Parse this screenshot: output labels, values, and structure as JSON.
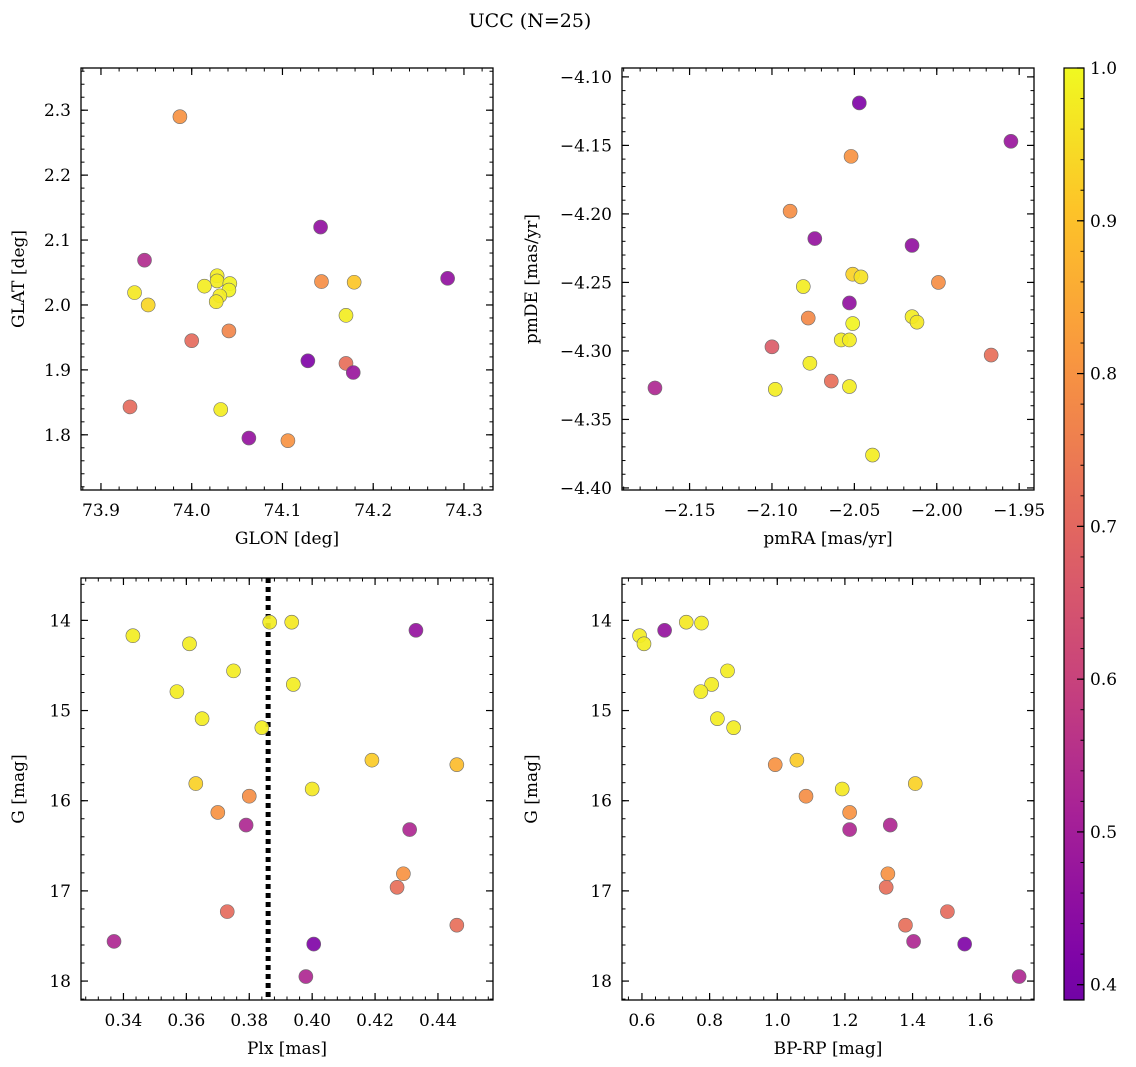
{
  "title": "UCC (N=25)",
  "colorbar": {
    "range": [
      0.39,
      1.0
    ],
    "ticks": [
      0.4,
      0.5,
      0.6,
      0.7,
      0.8,
      0.9,
      1.0
    ],
    "tick_labels": [
      "0.4",
      "0.5",
      "0.6",
      "0.7",
      "0.8",
      "0.9",
      "1.0"
    ],
    "colormap": "plasma"
  },
  "chart_data": [
    {
      "type": "scatter",
      "xlabel": "GLON [deg]",
      "ylabel": "GLAT [deg]",
      "xlim": [
        73.878,
        74.332
      ],
      "ylim": [
        1.715,
        2.365
      ],
      "xticks": [
        73.9,
        74.0,
        74.1,
        74.2,
        74.3
      ],
      "xtick_labels": [
        "73.9",
        "74.0",
        "74.1",
        "74.2",
        "74.3"
      ],
      "yticks": [
        1.8,
        1.9,
        2.0,
        2.1,
        2.2,
        2.3
      ],
      "ytick_labels": [
        "1.8",
        "1.9",
        "2.0",
        "2.1",
        "2.2",
        "2.3"
      ],
      "points": [
        {
          "x": 73.987,
          "y": 2.29,
          "c": 0.8
        },
        {
          "x": 74.142,
          "y": 2.12,
          "c": 0.46
        },
        {
          "x": 73.948,
          "y": 2.069,
          "c": 0.54
        },
        {
          "x": 74.282,
          "y": 2.041,
          "c": 0.46
        },
        {
          "x": 74.028,
          "y": 2.045,
          "c": 0.98
        },
        {
          "x": 74.143,
          "y": 2.036,
          "c": 0.79
        },
        {
          "x": 74.179,
          "y": 2.035,
          "c": 0.91
        },
        {
          "x": 74.028,
          "y": 2.037,
          "c": 0.98
        },
        {
          "x": 74.042,
          "y": 2.033,
          "c": 0.99
        },
        {
          "x": 74.014,
          "y": 2.029,
          "c": 0.98
        },
        {
          "x": 74.041,
          "y": 2.023,
          "c": 0.99
        },
        {
          "x": 73.937,
          "y": 2.019,
          "c": 0.97
        },
        {
          "x": 74.031,
          "y": 2.014,
          "c": 0.98
        },
        {
          "x": 74.027,
          "y": 2.005,
          "c": 0.97
        },
        {
          "x": 73.952,
          "y": 2.0,
          "c": 0.94
        },
        {
          "x": 74.17,
          "y": 1.984,
          "c": 0.98
        },
        {
          "x": 74.041,
          "y": 1.96,
          "c": 0.77
        },
        {
          "x": 74.0,
          "y": 1.945,
          "c": 0.71
        },
        {
          "x": 74.128,
          "y": 1.914,
          "c": 0.42
        },
        {
          "x": 74.17,
          "y": 1.91,
          "c": 0.72
        },
        {
          "x": 74.178,
          "y": 1.896,
          "c": 0.48
        },
        {
          "x": 73.932,
          "y": 1.843,
          "c": 0.71
        },
        {
          "x": 74.032,
          "y": 1.839,
          "c": 0.98
        },
        {
          "x": 74.063,
          "y": 1.795,
          "c": 0.47
        },
        {
          "x": 74.106,
          "y": 1.791,
          "c": 0.8
        }
      ]
    },
    {
      "type": "scatter",
      "xlabel": "pmRA [mas/yr]",
      "ylabel": "pmDE [mas/yr]",
      "xlim": [
        -2.191,
        -1.941
      ],
      "ylim": [
        -4.4015,
        -4.0935
      ],
      "xticks": [
        -2.15,
        -2.1,
        -2.05,
        -2.0,
        -1.95
      ],
      "xtick_labels": [
        "−2.15",
        "−2.10",
        "−2.05",
        "−2.00",
        "−1.95"
      ],
      "yticks": [
        -4.4,
        -4.35,
        -4.3,
        -4.25,
        -4.2,
        -4.15,
        -4.1
      ],
      "ytick_labels": [
        "−4.40",
        "−4.35",
        "−4.30",
        "−4.25",
        "−4.20",
        "−4.15",
        "−4.10"
      ],
      "points": [
        {
          "x": -2.047,
          "y": -4.119,
          "c": 0.42
        },
        {
          "x": -1.955,
          "y": -4.147,
          "c": 0.48
        },
        {
          "x": -2.052,
          "y": -4.158,
          "c": 0.8
        },
        {
          "x": -2.089,
          "y": -4.198,
          "c": 0.79
        },
        {
          "x": -2.074,
          "y": -4.218,
          "c": 0.47
        },
        {
          "x": -2.015,
          "y": -4.223,
          "c": 0.46
        },
        {
          "x": -2.051,
          "y": -4.244,
          "c": 0.93
        },
        {
          "x": -2.046,
          "y": -4.246,
          "c": 0.96
        },
        {
          "x": -1.999,
          "y": -4.25,
          "c": 0.79
        },
        {
          "x": -2.081,
          "y": -4.253,
          "c": 0.98
        },
        {
          "x": -2.053,
          "y": -4.265,
          "c": 0.46
        },
        {
          "x": -2.078,
          "y": -4.276,
          "c": 0.78
        },
        {
          "x": -2.015,
          "y": -4.275,
          "c": 0.98
        },
        {
          "x": -2.012,
          "y": -4.279,
          "c": 0.97
        },
        {
          "x": -2.051,
          "y": -4.28,
          "c": 0.99
        },
        {
          "x": -2.058,
          "y": -4.292,
          "c": 0.98
        },
        {
          "x": -2.053,
          "y": -4.292,
          "c": 0.98
        },
        {
          "x": -2.1,
          "y": -4.297,
          "c": 0.67
        },
        {
          "x": -1.967,
          "y": -4.303,
          "c": 0.72
        },
        {
          "x": -2.077,
          "y": -4.309,
          "c": 0.98
        },
        {
          "x": -2.064,
          "y": -4.322,
          "c": 0.72
        },
        {
          "x": -2.053,
          "y": -4.326,
          "c": 0.98
        },
        {
          "x": -2.171,
          "y": -4.327,
          "c": 0.53
        },
        {
          "x": -2.098,
          "y": -4.328,
          "c": 0.98
        },
        {
          "x": -2.039,
          "y": -4.376,
          "c": 0.98
        }
      ]
    },
    {
      "type": "scatter",
      "xlabel": "Plx [mas]",
      "ylabel": "G [mag]",
      "xlim": [
        0.3265,
        0.4575
      ],
      "ylim": [
        18.21,
        13.53
      ],
      "vline": 0.386,
      "xticks": [
        0.34,
        0.36,
        0.38,
        0.4,
        0.42,
        0.44
      ],
      "xtick_labels": [
        "0.34",
        "0.36",
        "0.38",
        "0.40",
        "0.42",
        "0.44"
      ],
      "yticks": [
        14,
        15,
        16,
        17,
        18
      ],
      "ytick_labels": [
        "14",
        "15",
        "16",
        "17",
        "18"
      ],
      "points": [
        {
          "x": 0.3865,
          "y": 14.02,
          "c": 0.98
        },
        {
          "x": 0.3935,
          "y": 14.02,
          "c": 0.97
        },
        {
          "x": 0.433,
          "y": 14.11,
          "c": 0.47
        },
        {
          "x": 0.343,
          "y": 14.17,
          "c": 0.98
        },
        {
          "x": 0.361,
          "y": 14.26,
          "c": 0.98
        },
        {
          "x": 0.375,
          "y": 14.56,
          "c": 0.98
        },
        {
          "x": 0.394,
          "y": 14.71,
          "c": 0.98
        },
        {
          "x": 0.357,
          "y": 14.79,
          "c": 0.98
        },
        {
          "x": 0.365,
          "y": 15.09,
          "c": 0.98
        },
        {
          "x": 0.384,
          "y": 15.19,
          "c": 0.98
        },
        {
          "x": 0.419,
          "y": 15.55,
          "c": 0.92
        },
        {
          "x": 0.446,
          "y": 15.6,
          "c": 0.89
        },
        {
          "x": 0.363,
          "y": 15.81,
          "c": 0.93
        },
        {
          "x": 0.4,
          "y": 15.87,
          "c": 0.97
        },
        {
          "x": 0.38,
          "y": 15.95,
          "c": 0.79
        },
        {
          "x": 0.37,
          "y": 16.13,
          "c": 0.8
        },
        {
          "x": 0.379,
          "y": 16.27,
          "c": 0.53
        },
        {
          "x": 0.431,
          "y": 16.32,
          "c": 0.53
        },
        {
          "x": 0.429,
          "y": 16.81,
          "c": 0.8
        },
        {
          "x": 0.427,
          "y": 16.96,
          "c": 0.72
        },
        {
          "x": 0.373,
          "y": 17.23,
          "c": 0.71
        },
        {
          "x": 0.446,
          "y": 17.38,
          "c": 0.72
        },
        {
          "x": 0.337,
          "y": 17.56,
          "c": 0.53
        },
        {
          "x": 0.4005,
          "y": 17.59,
          "c": 0.42
        },
        {
          "x": 0.398,
          "y": 17.95,
          "c": 0.53
        }
      ]
    },
    {
      "type": "scatter",
      "xlabel": "BP-RP [mag]",
      "ylabel": "G [mag]",
      "xlim": [
        0.541,
        1.759
      ],
      "ylim": [
        18.21,
        13.53
      ],
      "xticks": [
        0.6,
        0.8,
        1.0,
        1.2,
        1.4,
        1.6
      ],
      "xtick_labels": [
        "0.6",
        "0.8",
        "1.0",
        "1.2",
        "1.4",
        "1.6"
      ],
      "yticks": [
        14,
        15,
        16,
        17,
        18
      ],
      "ytick_labels": [
        "14",
        "15",
        "16",
        "17",
        "18"
      ],
      "points": [
        {
          "x": 0.731,
          "y": 14.02,
          "c": 0.97
        },
        {
          "x": 0.776,
          "y": 14.03,
          "c": 0.98
        },
        {
          "x": 0.667,
          "y": 14.11,
          "c": 0.47
        },
        {
          "x": 0.593,
          "y": 14.17,
          "c": 0.98
        },
        {
          "x": 0.606,
          "y": 14.26,
          "c": 0.98
        },
        {
          "x": 0.853,
          "y": 14.56,
          "c": 0.98
        },
        {
          "x": 0.806,
          "y": 14.71,
          "c": 0.98
        },
        {
          "x": 0.774,
          "y": 14.79,
          "c": 0.98
        },
        {
          "x": 0.823,
          "y": 15.09,
          "c": 0.98
        },
        {
          "x": 0.871,
          "y": 15.19,
          "c": 0.98
        },
        {
          "x": 1.058,
          "y": 15.55,
          "c": 0.92
        },
        {
          "x": 0.994,
          "y": 15.6,
          "c": 0.8
        },
        {
          "x": 1.408,
          "y": 15.81,
          "c": 0.93
        },
        {
          "x": 1.192,
          "y": 15.87,
          "c": 0.97
        },
        {
          "x": 1.085,
          "y": 15.95,
          "c": 0.79
        },
        {
          "x": 1.214,
          "y": 16.13,
          "c": 0.8
        },
        {
          "x": 1.334,
          "y": 16.27,
          "c": 0.53
        },
        {
          "x": 1.214,
          "y": 16.32,
          "c": 0.53
        },
        {
          "x": 1.327,
          "y": 16.81,
          "c": 0.8
        },
        {
          "x": 1.322,
          "y": 16.96,
          "c": 0.72
        },
        {
          "x": 1.503,
          "y": 17.23,
          "c": 0.71
        },
        {
          "x": 1.379,
          "y": 17.38,
          "c": 0.72
        },
        {
          "x": 1.403,
          "y": 17.56,
          "c": 0.53
        },
        {
          "x": 1.554,
          "y": 17.59,
          "c": 0.42
        },
        {
          "x": 1.715,
          "y": 17.95,
          "c": 0.53
        }
      ]
    }
  ]
}
